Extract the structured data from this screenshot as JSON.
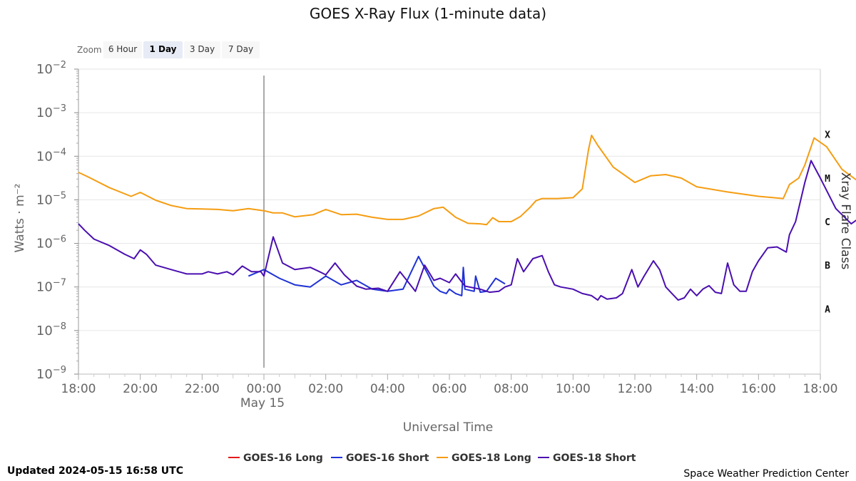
{
  "zoom": {
    "label": "Zoom",
    "buttons": [
      "6 Hour",
      "1 Day",
      "3 Day",
      "7 Day"
    ],
    "selected": "1 Day"
  },
  "footer": {
    "updated": "Updated 2024-05-15 16:58 UTC",
    "credit": "Space Weather Prediction Center"
  },
  "colors": {
    "goes16_long": "#e31a1c",
    "goes16_short": "#1f32d6",
    "goes18_long": "#f59d12",
    "goes18_short": "#4a0fb0"
  },
  "chart_data": {
    "type": "line",
    "title": "GOES X-Ray Flux (1-minute data)",
    "xlabel": "Universal Time",
    "ylabel": "Watts · m⁻²",
    "y2label": "Xray Flare Class",
    "yscale": "log",
    "ylim_exp": [
      -9,
      -2
    ],
    "xlim_hours": [
      18,
      42
    ],
    "x_ticks": [
      "18:00",
      "20:00",
      "22:00",
      "00:00",
      "02:00",
      "04:00",
      "06:00",
      "08:00",
      "10:00",
      "12:00",
      "14:00",
      "16:00",
      "18:00"
    ],
    "x_date_label": "May 15",
    "y_tick_exponents": [
      -2,
      -3,
      -4,
      -5,
      -6,
      -7,
      -8,
      -9
    ],
    "flare_classes": [
      {
        "label": "X",
        "exp": -3.5
      },
      {
        "label": "M",
        "exp": -4.5
      },
      {
        "label": "C",
        "exp": -5.5
      },
      {
        "label": "B",
        "exp": -6.5
      },
      {
        "label": "A",
        "exp": -7.5
      }
    ],
    "marker_time": "00:00",
    "legend_position": "bottom-center",
    "series": [
      {
        "name": "GOES-16 Long",
        "key": "goes16_long",
        "points": []
      },
      {
        "name": "GOES-16 Short",
        "key": "goes16_short",
        "points": [
          [
            23.5,
            -6.75
          ],
          [
            24.0,
            -6.6
          ],
          [
            24.5,
            -6.8
          ],
          [
            25.0,
            -6.95
          ],
          [
            25.5,
            -7.0
          ],
          [
            26.0,
            -6.75
          ],
          [
            26.5,
            -6.95
          ],
          [
            27.0,
            -6.85
          ],
          [
            27.5,
            -7.05
          ],
          [
            28.0,
            -7.1
          ],
          [
            28.5,
            -7.05
          ],
          [
            29.0,
            -6.3
          ],
          [
            29.3,
            -6.7
          ],
          [
            29.5,
            -6.98
          ],
          [
            29.7,
            -7.1
          ],
          [
            29.9,
            -7.15
          ],
          [
            30.0,
            -7.05
          ],
          [
            30.2,
            -7.15
          ],
          [
            30.4,
            -7.2
          ],
          [
            30.45,
            -6.55
          ],
          [
            30.5,
            -7.05
          ],
          [
            30.8,
            -7.1
          ],
          [
            30.85,
            -6.75
          ],
          [
            31.0,
            -7.12
          ],
          [
            31.2,
            -7.1
          ],
          [
            31.5,
            -6.8
          ],
          [
            31.8,
            -6.93
          ]
        ]
      },
      {
        "name": "GOES-18 Long",
        "key": "goes18_long",
        "points": [
          [
            18.0,
            -4.37
          ],
          [
            18.3,
            -4.47
          ],
          [
            19.0,
            -4.72
          ],
          [
            19.7,
            -4.92
          ],
          [
            20.0,
            -4.83
          ],
          [
            20.5,
            -5.01
          ],
          [
            21.0,
            -5.13
          ],
          [
            21.5,
            -5.2
          ],
          [
            22.0,
            -5.21
          ],
          [
            22.5,
            -5.22
          ],
          [
            23.0,
            -5.25
          ],
          [
            23.5,
            -5.2
          ],
          [
            24.0,
            -5.25
          ],
          [
            24.3,
            -5.3
          ],
          [
            24.6,
            -5.3
          ],
          [
            25.0,
            -5.39
          ],
          [
            25.6,
            -5.34
          ],
          [
            26.0,
            -5.22
          ],
          [
            26.5,
            -5.34
          ],
          [
            27.0,
            -5.33
          ],
          [
            27.5,
            -5.4
          ],
          [
            28.0,
            -5.45
          ],
          [
            28.5,
            -5.45
          ],
          [
            29.0,
            -5.37
          ],
          [
            29.5,
            -5.2
          ],
          [
            29.8,
            -5.17
          ],
          [
            30.2,
            -5.4
          ],
          [
            30.6,
            -5.54
          ],
          [
            31.0,
            -5.55
          ],
          [
            31.2,
            -5.57
          ],
          [
            31.4,
            -5.41
          ],
          [
            31.6,
            -5.5
          ],
          [
            32.0,
            -5.5
          ],
          [
            32.3,
            -5.38
          ],
          [
            32.6,
            -5.18
          ],
          [
            32.8,
            -5.02
          ],
          [
            33.0,
            -4.97
          ],
          [
            33.5,
            -4.97
          ],
          [
            34.0,
            -4.95
          ],
          [
            34.3,
            -4.75
          ],
          [
            34.5,
            -3.85
          ],
          [
            34.6,
            -3.52
          ],
          [
            34.8,
            -3.75
          ],
          [
            35.3,
            -4.25
          ],
          [
            36.0,
            -4.6
          ],
          [
            36.5,
            -4.45
          ],
          [
            37.0,
            -4.42
          ],
          [
            37.5,
            -4.5
          ],
          [
            38.0,
            -4.7
          ],
          [
            39.0,
            -4.82
          ],
          [
            40.0,
            -4.92
          ],
          [
            40.8,
            -4.97
          ],
          [
            41.0,
            -4.65
          ],
          [
            41.3,
            -4.5
          ],
          [
            41.5,
            -4.2
          ],
          [
            41.8,
            -3.58
          ],
          [
            42.2,
            -3.78
          ],
          [
            42.7,
            -4.3
          ],
          [
            43.5,
            -4.72
          ],
          [
            44.0,
            -4.87
          ],
          [
            44.5,
            -4.97
          ],
          [
            45.0,
            -5.05
          ]
        ]
      },
      {
        "name": "GOES-18 Short",
        "key": "goes18_short",
        "points": [
          [
            18.0,
            -5.55
          ],
          [
            18.2,
            -5.7
          ],
          [
            18.5,
            -5.9
          ],
          [
            19.0,
            -6.05
          ],
          [
            19.5,
            -6.25
          ],
          [
            19.8,
            -6.35
          ],
          [
            20.0,
            -6.15
          ],
          [
            20.2,
            -6.25
          ],
          [
            20.5,
            -6.5
          ],
          [
            21.0,
            -6.6
          ],
          [
            21.5,
            -6.7
          ],
          [
            22.0,
            -6.7
          ],
          [
            22.2,
            -6.65
          ],
          [
            22.5,
            -6.7
          ],
          [
            22.8,
            -6.65
          ],
          [
            23.0,
            -6.72
          ],
          [
            23.3,
            -6.52
          ],
          [
            23.6,
            -6.65
          ],
          [
            23.9,
            -6.65
          ],
          [
            24.0,
            -6.75
          ],
          [
            24.3,
            -5.85
          ],
          [
            24.6,
            -6.45
          ],
          [
            25.0,
            -6.6
          ],
          [
            25.5,
            -6.55
          ],
          [
            25.8,
            -6.65
          ],
          [
            26.0,
            -6.72
          ],
          [
            26.3,
            -6.45
          ],
          [
            26.6,
            -6.72
          ],
          [
            27.0,
            -6.98
          ],
          [
            27.3,
            -7.05
          ],
          [
            27.7,
            -7.03
          ],
          [
            28.0,
            -7.1
          ],
          [
            28.4,
            -6.65
          ],
          [
            28.7,
            -6.92
          ],
          [
            28.9,
            -7.1
          ],
          [
            29.2,
            -6.5
          ],
          [
            29.5,
            -6.85
          ],
          [
            29.7,
            -6.8
          ],
          [
            30.0,
            -6.9
          ],
          [
            30.2,
            -6.7
          ],
          [
            30.5,
            -6.98
          ],
          [
            31.0,
            -7.05
          ],
          [
            31.3,
            -7.12
          ],
          [
            31.6,
            -7.1
          ],
          [
            31.8,
            -7.0
          ],
          [
            32.0,
            -6.95
          ],
          [
            32.2,
            -6.35
          ],
          [
            32.4,
            -6.65
          ],
          [
            32.7,
            -6.35
          ],
          [
            33.0,
            -6.28
          ],
          [
            33.2,
            -6.65
          ],
          [
            33.4,
            -6.95
          ],
          [
            33.6,
            -7.0
          ],
          [
            34.0,
            -7.05
          ],
          [
            34.3,
            -7.15
          ],
          [
            34.6,
            -7.2
          ],
          [
            34.8,
            -7.3
          ],
          [
            34.9,
            -7.2
          ],
          [
            35.1,
            -7.28
          ],
          [
            35.4,
            -7.25
          ],
          [
            35.6,
            -7.15
          ],
          [
            35.9,
            -6.6
          ],
          [
            36.1,
            -7.0
          ],
          [
            36.3,
            -6.75
          ],
          [
            36.6,
            -6.4
          ],
          [
            36.8,
            -6.6
          ],
          [
            37.0,
            -7.0
          ],
          [
            37.2,
            -7.15
          ],
          [
            37.4,
            -7.3
          ],
          [
            37.6,
            -7.25
          ],
          [
            37.8,
            -7.05
          ],
          [
            38.0,
            -7.2
          ],
          [
            38.2,
            -7.05
          ],
          [
            38.4,
            -6.97
          ],
          [
            38.6,
            -7.12
          ],
          [
            38.8,
            -7.15
          ],
          [
            39.0,
            -6.45
          ],
          [
            39.2,
            -6.95
          ],
          [
            39.4,
            -7.1
          ],
          [
            39.6,
            -7.1
          ],
          [
            39.8,
            -6.65
          ],
          [
            40.0,
            -6.4
          ],
          [
            40.3,
            -6.1
          ],
          [
            40.6,
            -6.08
          ],
          [
            40.9,
            -6.2
          ],
          [
            41.0,
            -5.8
          ],
          [
            41.2,
            -5.5
          ],
          [
            41.5,
            -4.6
          ],
          [
            41.7,
            -4.1
          ],
          [
            42.0,
            -4.5
          ],
          [
            42.5,
            -5.2
          ],
          [
            43.0,
            -5.55
          ],
          [
            43.2,
            -5.45
          ],
          [
            43.5,
            -5.2
          ],
          [
            44.0,
            -5.15
          ],
          [
            44.5,
            -5.25
          ],
          [
            45.0,
            -5.45
          ]
        ]
      }
    ]
  }
}
